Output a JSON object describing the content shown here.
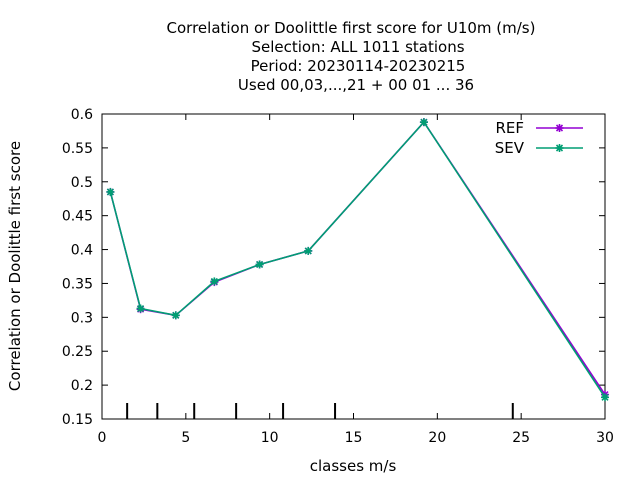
{
  "chart_data": {
    "type": "line",
    "title_lines": [
      "Correlation or Doolittle first score  for U10m (m/s)",
      "Selection: ALL   1011 stations",
      "Period: 20230114-20230215",
      "Used  00,03,...,21  + 00 01 ... 36"
    ],
    "xlabel": "classes m/s",
    "ylabel": "Correlation or Doolittle first score",
    "xlim": [
      0,
      30
    ],
    "ylim": [
      0.15,
      0.6
    ],
    "xticks": [
      0,
      5,
      10,
      15,
      20,
      25,
      30
    ],
    "yticks": [
      0.15,
      0.2,
      0.25,
      0.3,
      0.35,
      0.4,
      0.45,
      0.5,
      0.55,
      0.6
    ],
    "class_boundaries": [
      1.5,
      3.3,
      5.5,
      8.0,
      10.8,
      13.9,
      24.5
    ],
    "legend_position": "top-right",
    "series": [
      {
        "name": "REF",
        "color": "#9400d3",
        "x": [
          0.5,
          2.3,
          4.4,
          6.7,
          9.4,
          12.3,
          19.2,
          30.0
        ],
        "y": [
          0.485,
          0.312,
          0.303,
          0.352,
          0.378,
          0.398,
          0.588,
          0.186
        ]
      },
      {
        "name": "SEV",
        "color": "#009e73",
        "x": [
          0.5,
          2.3,
          4.4,
          6.7,
          9.4,
          12.3,
          19.2,
          30.0
        ],
        "y": [
          0.485,
          0.313,
          0.303,
          0.353,
          0.378,
          0.398,
          0.588,
          0.182
        ]
      }
    ]
  }
}
